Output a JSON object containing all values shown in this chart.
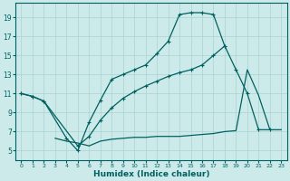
{
  "background_color": "#cceaea",
  "grid_color": "#aad2d2",
  "line_color": "#006060",
  "xlabel": "Humidex (Indice chaleur)",
  "xlim": [
    -0.5,
    23.5
  ],
  "ylim": [
    4,
    20.5
  ],
  "xticks": [
    0,
    1,
    2,
    3,
    4,
    5,
    6,
    7,
    8,
    9,
    10,
    11,
    12,
    13,
    14,
    15,
    16,
    17,
    18,
    19,
    20,
    21,
    22,
    23
  ],
  "yticks": [
    5,
    7,
    9,
    11,
    13,
    15,
    17,
    19
  ],
  "s1_x": [
    0,
    1,
    2,
    4,
    5,
    6,
    7,
    8,
    9,
    10,
    11,
    12,
    13,
    14,
    15,
    16,
    17,
    18
  ],
  "s1_y": [
    11.0,
    10.7,
    10.2,
    6.3,
    5.0,
    8.0,
    10.3,
    12.5,
    13.0,
    13.5,
    14.0,
    15.2,
    16.5,
    19.3,
    19.5,
    19.5,
    19.3,
    16.0
  ],
  "s2_x": [
    0,
    1,
    2,
    5,
    6,
    7,
    8,
    9,
    10,
    11,
    12,
    13,
    14,
    15,
    16,
    17,
    18,
    19,
    20,
    21,
    22
  ],
  "s2_y": [
    11.0,
    10.7,
    10.2,
    5.5,
    6.5,
    8.2,
    9.5,
    10.5,
    11.2,
    11.8,
    12.3,
    12.8,
    13.2,
    13.5,
    14.0,
    15.0,
    16.0,
    13.5,
    11.0,
    7.2,
    7.2
  ],
  "s3_x": [
    3,
    4,
    5,
    6,
    7,
    8,
    9,
    10,
    11,
    12,
    13,
    14,
    15,
    16,
    17,
    18,
    19,
    20,
    21,
    22,
    23
  ],
  "s3_y": [
    6.3,
    6.0,
    5.8,
    5.5,
    6.0,
    6.2,
    6.3,
    6.4,
    6.4,
    6.5,
    6.5,
    6.5,
    6.6,
    6.7,
    6.8,
    7.0,
    7.1,
    13.5,
    10.8,
    7.2,
    7.2
  ]
}
